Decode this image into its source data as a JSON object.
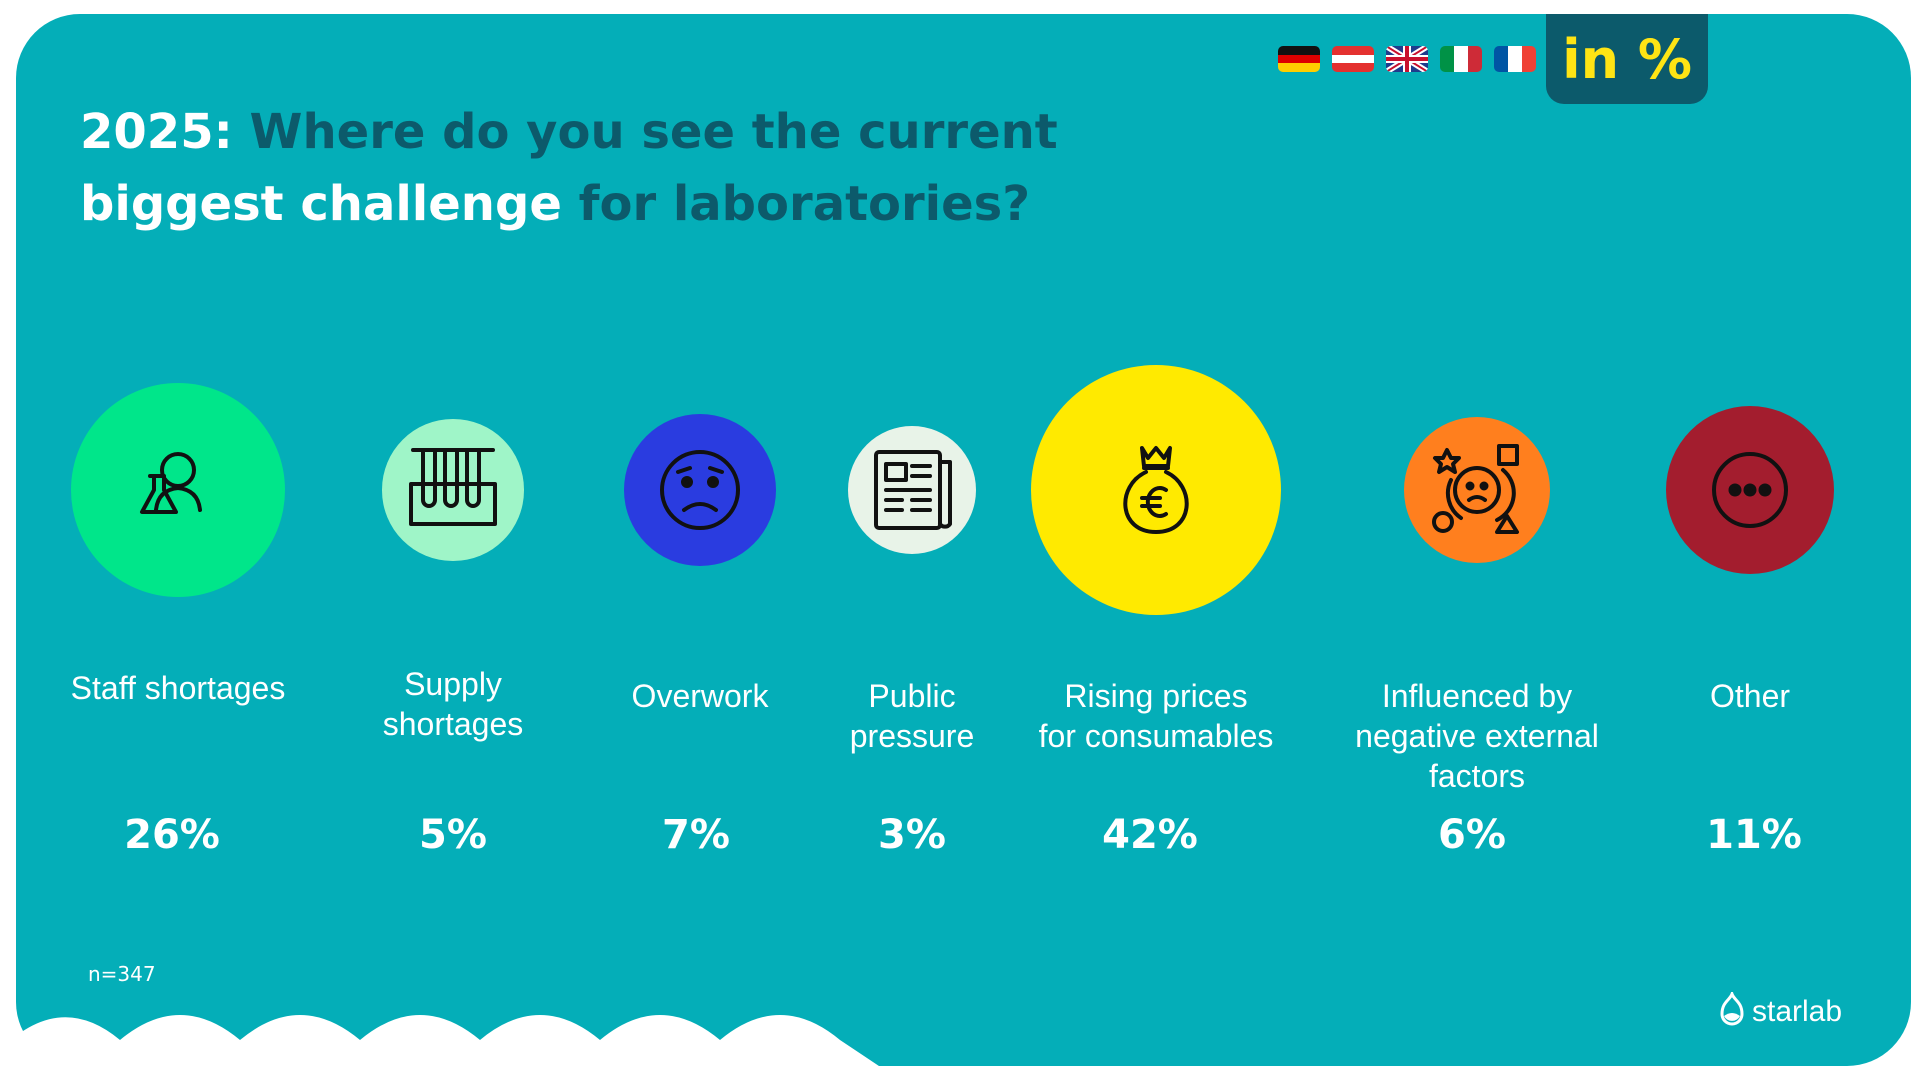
{
  "header": {
    "badge": "in %",
    "title_year": "2025:",
    "title_part1": "Where do you see the current",
    "title_emph": "biggest challenge",
    "title_part2": "for laboratories?",
    "flags": [
      "germany-flag",
      "austria-flag",
      "uk-flag",
      "italy-flag",
      "france-flag"
    ]
  },
  "chart_data": {
    "type": "bubble",
    "categories": [
      "Staff shortages",
      "Supply shortages",
      "Overwork",
      "Public pressure",
      "Rising prices for consumables",
      "Influenced by negative external factors",
      "Other"
    ],
    "values": [
      26,
      5,
      7,
      3,
      42,
      6,
      11
    ],
    "value_labels": [
      "26%",
      "5%",
      "7%",
      "3%",
      "42%",
      "6%",
      "11%"
    ],
    "label_lines": [
      [
        "Staff shortages"
      ],
      [
        "Supply",
        "shortages"
      ],
      [
        "Overwork"
      ],
      [
        "Public",
        "pressure"
      ],
      [
        "Rising prices",
        "for consumables"
      ],
      [
        "Influenced by",
        "negative external",
        "factors"
      ],
      [
        "Other"
      ]
    ],
    "colors": [
      "#00E68A",
      "#9FF5C8",
      "#2A3CE0",
      "#E8F3E8",
      "#FFEA00",
      "#FF7F1E",
      "#A31D2E"
    ],
    "icons": [
      "scientist-flask-icon",
      "test-tubes-rack-icon",
      "worried-face-icon",
      "newspaper-icon",
      "euro-money-bag-icon",
      "stressed-face-external-icon",
      "more-dots-icon"
    ],
    "unit": "%"
  },
  "footer": {
    "sample": "n=347",
    "brand": "starlab"
  }
}
